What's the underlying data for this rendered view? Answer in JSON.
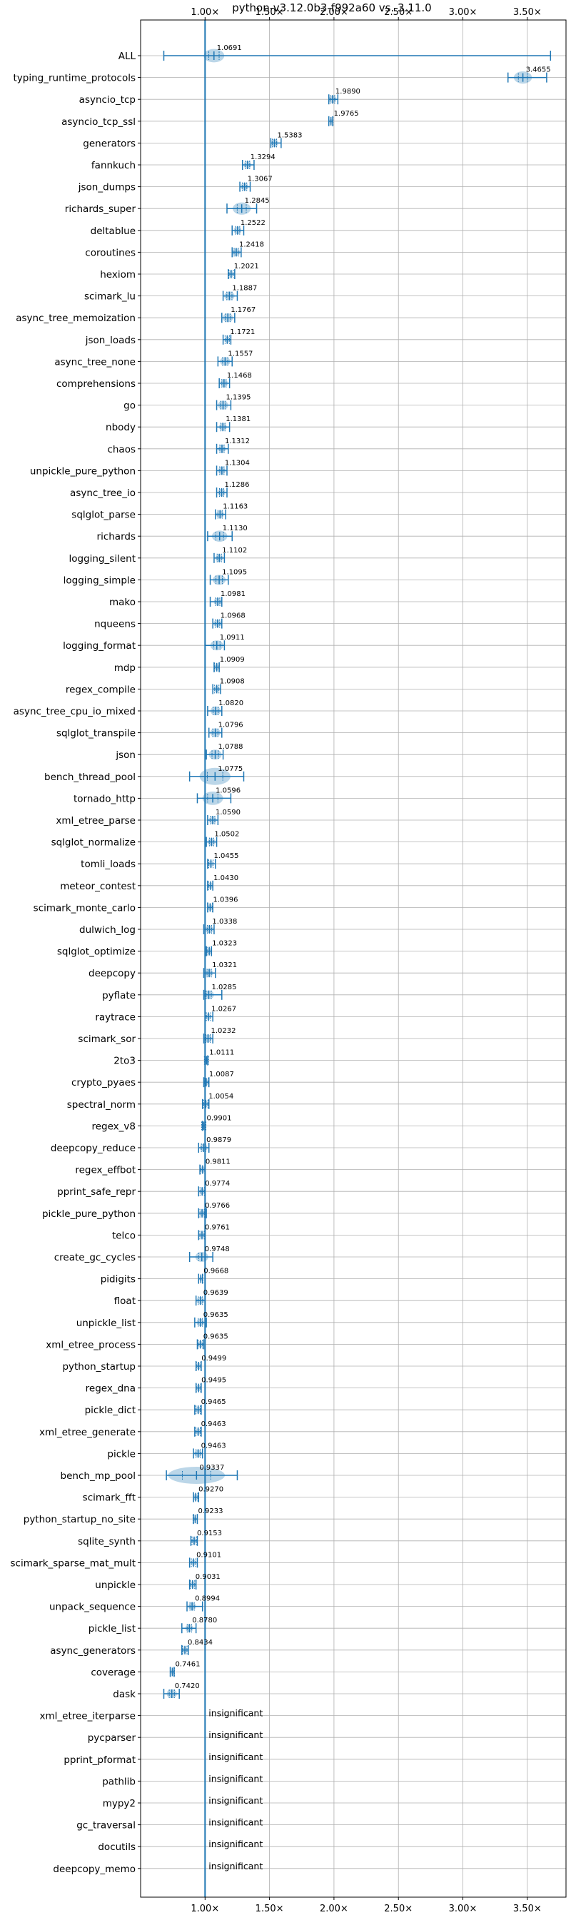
{
  "chart_data": {
    "type": "violin",
    "title": "python-v3.12.0b3-f992a60 vs. 3.11.0",
    "xlim": [
      0.5,
      3.8
    ],
    "x_ticks": [
      {
        "value": 1.0,
        "label": "1.00×"
      },
      {
        "value": 1.5,
        "label": "1.50×"
      },
      {
        "value": 2.0,
        "label": "2.00×"
      },
      {
        "value": 2.5,
        "label": "2.50×"
      },
      {
        "value": 3.0,
        "label": "3.00×"
      },
      {
        "value": 3.5,
        "label": "3.50×"
      }
    ],
    "reference_line": 1.0,
    "grid": true,
    "color": "#1f77b4",
    "insignificant_text": "insignificant",
    "benchmarks": [
      {
        "name": "ALL",
        "value": 1.0691,
        "label": "1.0691",
        "low": 0.68,
        "high": 3.68,
        "spread": 0.08
      },
      {
        "name": "typing_runtime_protocols",
        "value": 3.4655,
        "label": "3.4655",
        "low": 3.35,
        "high": 3.65,
        "spread": 0.07
      },
      {
        "name": "asyncio_tcp",
        "value": 1.989,
        "label": "1.9890",
        "low": 1.96,
        "high": 2.03,
        "spread": 0.03
      },
      {
        "name": "asyncio_tcp_ssl",
        "value": 1.9765,
        "label": "1.9765",
        "low": 1.96,
        "high": 1.99,
        "spread": 0.01
      },
      {
        "name": "generators",
        "value": 1.5383,
        "label": "1.5383",
        "low": 1.51,
        "high": 1.59,
        "spread": 0.03
      },
      {
        "name": "fannkuch",
        "value": 1.3294,
        "label": "1.3294",
        "low": 1.29,
        "high": 1.38,
        "spread": 0.03
      },
      {
        "name": "json_dumps",
        "value": 1.3067,
        "label": "1.3067",
        "low": 1.27,
        "high": 1.35,
        "spread": 0.03
      },
      {
        "name": "richards_super",
        "value": 1.2845,
        "label": "1.2845",
        "low": 1.17,
        "high": 1.4,
        "spread": 0.07
      },
      {
        "name": "deltablue",
        "value": 1.2522,
        "label": "1.2522",
        "low": 1.21,
        "high": 1.3,
        "spread": 0.03
      },
      {
        "name": "coroutines",
        "value": 1.2418,
        "label": "1.2418",
        "low": 1.21,
        "high": 1.28,
        "spread": 0.03
      },
      {
        "name": "hexiom",
        "value": 1.2021,
        "label": "1.2021",
        "low": 1.18,
        "high": 1.23,
        "spread": 0.02
      },
      {
        "name": "scimark_lu",
        "value": 1.1887,
        "label": "1.1887",
        "low": 1.14,
        "high": 1.25,
        "spread": 0.04
      },
      {
        "name": "async_tree_memoization",
        "value": 1.1767,
        "label": "1.1767",
        "low": 1.13,
        "high": 1.23,
        "spread": 0.04
      },
      {
        "name": "json_loads",
        "value": 1.1721,
        "label": "1.1721",
        "low": 1.14,
        "high": 1.2,
        "spread": 0.02
      },
      {
        "name": "async_tree_none",
        "value": 1.1557,
        "label": "1.1557",
        "low": 1.1,
        "high": 1.21,
        "spread": 0.04
      },
      {
        "name": "comprehensions",
        "value": 1.1468,
        "label": "1.1468",
        "low": 1.11,
        "high": 1.19,
        "spread": 0.03
      },
      {
        "name": "go",
        "value": 1.1395,
        "label": "1.1395",
        "low": 1.09,
        "high": 1.2,
        "spread": 0.04
      },
      {
        "name": "nbody",
        "value": 1.1381,
        "label": "1.1381",
        "low": 1.09,
        "high": 1.19,
        "spread": 0.03
      },
      {
        "name": "chaos",
        "value": 1.1312,
        "label": "1.1312",
        "low": 1.09,
        "high": 1.18,
        "spread": 0.03
      },
      {
        "name": "unpickle_pure_python",
        "value": 1.1304,
        "label": "1.1304",
        "low": 1.09,
        "high": 1.17,
        "spread": 0.03
      },
      {
        "name": "async_tree_io",
        "value": 1.1286,
        "label": "1.1286",
        "low": 1.09,
        "high": 1.17,
        "spread": 0.03
      },
      {
        "name": "sqlglot_parse",
        "value": 1.1163,
        "label": "1.1163",
        "low": 1.08,
        "high": 1.16,
        "spread": 0.03
      },
      {
        "name": "richards",
        "value": 1.113,
        "label": "1.1130",
        "low": 1.02,
        "high": 1.21,
        "spread": 0.06
      },
      {
        "name": "logging_silent",
        "value": 1.1102,
        "label": "1.1102",
        "low": 1.07,
        "high": 1.15,
        "spread": 0.03
      },
      {
        "name": "logging_simple",
        "value": 1.1095,
        "label": "1.1095",
        "low": 1.04,
        "high": 1.18,
        "spread": 0.05
      },
      {
        "name": "mako",
        "value": 1.0981,
        "label": "1.0981",
        "low": 1.04,
        "high": 1.13,
        "spread": 0.03
      },
      {
        "name": "nqueens",
        "value": 1.0968,
        "label": "1.0968",
        "low": 1.06,
        "high": 1.13,
        "spread": 0.03
      },
      {
        "name": "logging_format",
        "value": 1.0911,
        "label": "1.0911",
        "low": 1.0,
        "high": 1.15,
        "spread": 0.05
      },
      {
        "name": "mdp",
        "value": 1.0909,
        "label": "1.0909",
        "low": 1.07,
        "high": 1.11,
        "spread": 0.02
      },
      {
        "name": "regex_compile",
        "value": 1.0908,
        "label": "1.0908",
        "low": 1.06,
        "high": 1.12,
        "spread": 0.02
      },
      {
        "name": "async_tree_cpu_io_mixed",
        "value": 1.082,
        "label": "1.0820",
        "low": 1.02,
        "high": 1.13,
        "spread": 0.04
      },
      {
        "name": "sqlglot_transpile",
        "value": 1.0796,
        "label": "1.0796",
        "low": 1.03,
        "high": 1.13,
        "spread": 0.04
      },
      {
        "name": "json",
        "value": 1.0788,
        "label": "1.0788",
        "low": 1.01,
        "high": 1.14,
        "spread": 0.05
      },
      {
        "name": "bench_thread_pool",
        "value": 1.0775,
        "label": "1.0775",
        "low": 0.88,
        "high": 1.3,
        "spread": 0.12
      },
      {
        "name": "tornado_http",
        "value": 1.0596,
        "label": "1.0596",
        "low": 0.94,
        "high": 1.2,
        "spread": 0.08
      },
      {
        "name": "xml_etree_parse",
        "value": 1.059,
        "label": "1.0590",
        "low": 1.02,
        "high": 1.1,
        "spread": 0.03
      },
      {
        "name": "sqlglot_normalize",
        "value": 1.0502,
        "label": "1.0502",
        "low": 1.01,
        "high": 1.09,
        "spread": 0.03
      },
      {
        "name": "tomli_loads",
        "value": 1.0455,
        "label": "1.0455",
        "low": 1.02,
        "high": 1.08,
        "spread": 0.02
      },
      {
        "name": "meteor_contest",
        "value": 1.043,
        "label": "1.0430",
        "low": 1.02,
        "high": 1.06,
        "spread": 0.02
      },
      {
        "name": "scimark_monte_carlo",
        "value": 1.0396,
        "label": "1.0396",
        "low": 1.02,
        "high": 1.06,
        "spread": 0.02
      },
      {
        "name": "dulwich_log",
        "value": 1.0338,
        "label": "1.0338",
        "low": 0.99,
        "high": 1.07,
        "spread": 0.03
      },
      {
        "name": "sqlglot_optimize",
        "value": 1.0323,
        "label": "1.0323",
        "low": 1.01,
        "high": 1.05,
        "spread": 0.02
      },
      {
        "name": "deepcopy",
        "value": 1.0321,
        "label": "1.0321",
        "low": 0.99,
        "high": 1.08,
        "spread": 0.03
      },
      {
        "name": "pyflate",
        "value": 1.0285,
        "label": "1.0285",
        "low": 0.99,
        "high": 1.13,
        "spread": 0.04
      },
      {
        "name": "raytrace",
        "value": 1.0267,
        "label": "1.0267",
        "low": 1.0,
        "high": 1.06,
        "spread": 0.02
      },
      {
        "name": "scimark_sor",
        "value": 1.0232,
        "label": "1.0232",
        "low": 0.99,
        "high": 1.06,
        "spread": 0.03
      },
      {
        "name": "2to3",
        "value": 1.0111,
        "label": "1.0111",
        "low": 1.0,
        "high": 1.02,
        "spread": 0.01
      },
      {
        "name": "crypto_pyaes",
        "value": 1.0087,
        "label": "1.0087",
        "low": 0.99,
        "high": 1.03,
        "spread": 0.02
      },
      {
        "name": "spectral_norm",
        "value": 1.0054,
        "label": "1.0054",
        "low": 0.98,
        "high": 1.03,
        "spread": 0.02
      },
      {
        "name": "regex_v8",
        "value": 0.9901,
        "label": "0.9901",
        "low": 0.98,
        "high": 1.0,
        "spread": 0.01
      },
      {
        "name": "deepcopy_reduce",
        "value": 0.9879,
        "label": "0.9879",
        "low": 0.95,
        "high": 1.03,
        "spread": 0.03
      },
      {
        "name": "regex_effbot",
        "value": 0.9811,
        "label": "0.9811",
        "low": 0.96,
        "high": 1.0,
        "spread": 0.02
      },
      {
        "name": "pprint_safe_repr",
        "value": 0.9774,
        "label": "0.9774",
        "low": 0.95,
        "high": 1.0,
        "spread": 0.02
      },
      {
        "name": "pickle_pure_python",
        "value": 0.9766,
        "label": "0.9766",
        "low": 0.95,
        "high": 1.01,
        "spread": 0.02
      },
      {
        "name": "telco",
        "value": 0.9761,
        "label": "0.9761",
        "low": 0.95,
        "high": 1.0,
        "spread": 0.02
      },
      {
        "name": "create_gc_cycles",
        "value": 0.9748,
        "label": "0.9748",
        "low": 0.88,
        "high": 1.06,
        "spread": 0.05
      },
      {
        "name": "pidigits",
        "value": 0.9668,
        "label": "0.9668",
        "low": 0.95,
        "high": 0.98,
        "spread": 0.01
      },
      {
        "name": "float",
        "value": 0.9639,
        "label": "0.9639",
        "low": 0.93,
        "high": 1.0,
        "spread": 0.03
      },
      {
        "name": "unpickle_list",
        "value": 0.9635,
        "label": "0.9635",
        "low": 0.92,
        "high": 1.01,
        "spread": 0.03
      },
      {
        "name": "xml_etree_process",
        "value": 0.9635,
        "label": "0.9635",
        "low": 0.94,
        "high": 0.99,
        "spread": 0.02
      },
      {
        "name": "python_startup",
        "value": 0.9499,
        "label": "0.9499",
        "low": 0.93,
        "high": 0.97,
        "spread": 0.02
      },
      {
        "name": "regex_dna",
        "value": 0.9495,
        "label": "0.9495",
        "low": 0.93,
        "high": 0.97,
        "spread": 0.02
      },
      {
        "name": "pickle_dict",
        "value": 0.9465,
        "label": "0.9465",
        "low": 0.92,
        "high": 0.97,
        "spread": 0.02
      },
      {
        "name": "xml_etree_generate",
        "value": 0.9463,
        "label": "0.9463",
        "low": 0.92,
        "high": 0.97,
        "spread": 0.02
      },
      {
        "name": "pickle",
        "value": 0.9463,
        "label": "0.9463",
        "low": 0.91,
        "high": 0.98,
        "spread": 0.03
      },
      {
        "name": "bench_mp_pool",
        "value": 0.9337,
        "label": "0.9337",
        "low": 0.7,
        "high": 1.25,
        "spread": 0.22
      },
      {
        "name": "scimark_fft",
        "value": 0.927,
        "label": "0.9270",
        "low": 0.91,
        "high": 0.95,
        "spread": 0.02
      },
      {
        "name": "python_startup_no_site",
        "value": 0.9233,
        "label": "0.9233",
        "low": 0.91,
        "high": 0.94,
        "spread": 0.01
      },
      {
        "name": "sqlite_synth",
        "value": 0.9153,
        "label": "0.9153",
        "low": 0.89,
        "high": 0.94,
        "spread": 0.02
      },
      {
        "name": "scimark_sparse_mat_mult",
        "value": 0.9101,
        "label": "0.9101",
        "low": 0.88,
        "high": 0.94,
        "spread": 0.02
      },
      {
        "name": "unpickle",
        "value": 0.9031,
        "label": "0.9031",
        "low": 0.88,
        "high": 0.93,
        "spread": 0.02
      },
      {
        "name": "unpack_sequence",
        "value": 0.8994,
        "label": "0.8994",
        "low": 0.86,
        "high": 0.98,
        "spread": 0.03
      },
      {
        "name": "pickle_list",
        "value": 0.878,
        "label": "0.8780",
        "low": 0.82,
        "high": 0.93,
        "spread": 0.03
      },
      {
        "name": "async_generators",
        "value": 0.8434,
        "label": "0.8434",
        "low": 0.82,
        "high": 0.87,
        "spread": 0.02
      },
      {
        "name": "coverage",
        "value": 0.7461,
        "label": "0.7461",
        "low": 0.73,
        "high": 0.76,
        "spread": 0.01
      },
      {
        "name": "dask",
        "value": 0.742,
        "label": "0.7420",
        "low": 0.68,
        "high": 0.8,
        "spread": 0.04
      },
      {
        "name": "xml_etree_iterparse",
        "insignificant": true
      },
      {
        "name": "pycparser",
        "insignificant": true
      },
      {
        "name": "pprint_pformat",
        "insignificant": true
      },
      {
        "name": "pathlib",
        "insignificant": true
      },
      {
        "name": "mypy2",
        "insignificant": true
      },
      {
        "name": "gc_traversal",
        "insignificant": true
      },
      {
        "name": "docutils",
        "insignificant": true
      },
      {
        "name": "deepcopy_memo",
        "insignificant": true
      }
    ]
  }
}
